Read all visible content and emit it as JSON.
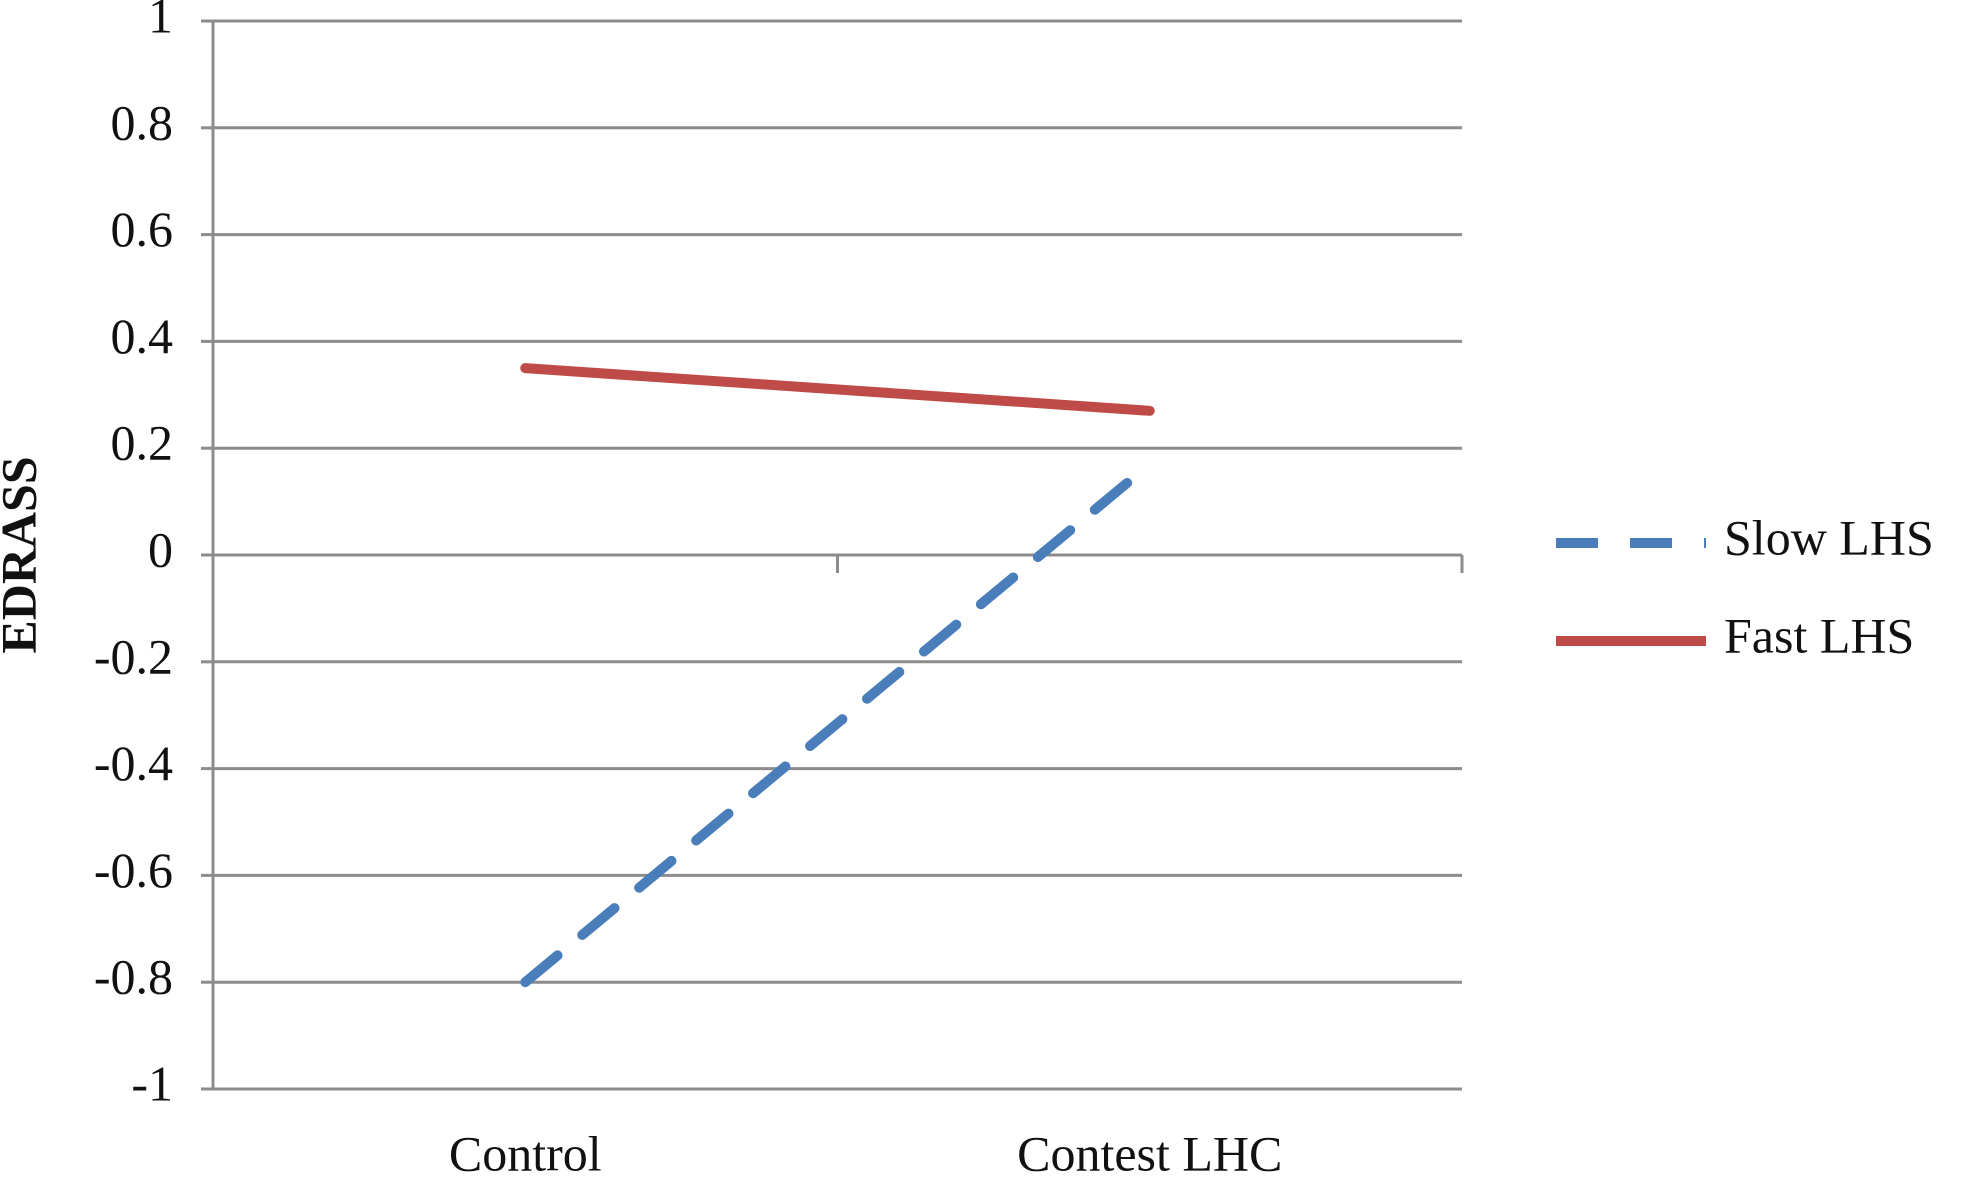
{
  "chart_data": {
    "type": "line",
    "y_label": "EDRASS",
    "categories": [
      "Control",
      "Contest LHC"
    ],
    "series": [
      {
        "name": "Slow LHS",
        "color": "#4a7ebb",
        "dashed": true,
        "values": [
          -0.8,
          0.17
        ]
      },
      {
        "name": "Fast LHS",
        "color": "#be4b48",
        "dashed": false,
        "values": [
          0.35,
          0.27
        ]
      }
    ],
    "ylim": [
      -1,
      1
    ],
    "yticks": [
      -1,
      -0.8,
      -0.6,
      -0.4,
      -0.2,
      0,
      0.2,
      0.4,
      0.6,
      0.8,
      1
    ],
    "grid": true
  }
}
